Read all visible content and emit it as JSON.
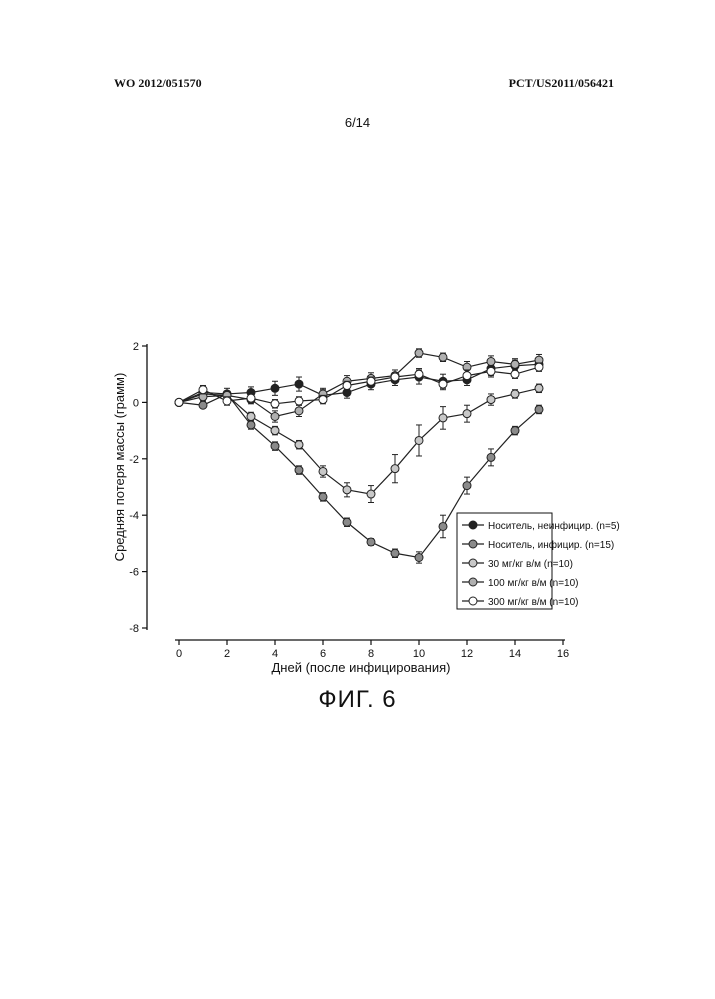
{
  "header": {
    "left": "WO 2012/051570",
    "right": "PCT/US2011/056421"
  },
  "page_number": "6/14",
  "figure_caption": "ФИГ. 6",
  "chart_data": {
    "type": "line",
    "title": "",
    "xlabel": "Дней (после инфицирования)",
    "ylabel": "Средняя потеря массы (грамм)",
    "xlim": [
      0,
      16
    ],
    "ylim": [
      -8,
      2
    ],
    "xticks": [
      0,
      2,
      4,
      6,
      8,
      10,
      12,
      14,
      16
    ],
    "yticks": [
      -8,
      -6,
      -4,
      -2,
      0,
      2
    ],
    "grid": false,
    "legend_position": "lower-right",
    "x": [
      0,
      1,
      2,
      3,
      4,
      5,
      6,
      7,
      8,
      9,
      10,
      11,
      12,
      13,
      14,
      15
    ],
    "series": [
      {
        "name": "Носитель, неинфицир. (n=5)",
        "color": "#222222",
        "values": [
          0,
          0.35,
          0.3,
          0.35,
          0.5,
          0.65,
          0.25,
          0.35,
          0.65,
          0.8,
          0.9,
          0.75,
          0.8,
          1.2,
          1.3,
          1.35
        ],
        "errors": [
          0,
          0.2,
          0.2,
          0.2,
          0.25,
          0.25,
          0.2,
          0.2,
          0.2,
          0.2,
          0.25,
          0.25,
          0.2,
          0.25,
          0.2,
          0.2
        ]
      },
      {
        "name": "Носитель, инфицир. (n=15)",
        "color": "#8a8a8a",
        "values": [
          0,
          -0.1,
          0.3,
          -0.8,
          -1.55,
          -2.4,
          -3.35,
          -4.25,
          -4.95,
          -5.35,
          -5.5,
          -4.4,
          -2.95,
          -1.95,
          -1.0,
          -0.25
        ],
        "errors": [
          0,
          0.1,
          0.1,
          0.15,
          0.15,
          0.15,
          0.15,
          0.15,
          0.12,
          0.15,
          0.2,
          0.4,
          0.3,
          0.3,
          0.15,
          0.15
        ]
      },
      {
        "name": "30 мг/кг в/м (n=10)",
        "color": "#c8c8c8",
        "values": [
          0,
          0.3,
          0.25,
          -0.5,
          -1.0,
          -1.5,
          -2.45,
          -3.1,
          -3.25,
          -2.35,
          -1.35,
          -0.55,
          -0.4,
          0.1,
          0.3,
          0.5
        ],
        "errors": [
          0,
          0.15,
          0.15,
          0.15,
          0.15,
          0.15,
          0.2,
          0.25,
          0.3,
          0.5,
          0.55,
          0.4,
          0.3,
          0.2,
          0.15,
          0.15
        ]
      },
      {
        "name": "100 мг/кг в/м (n=10)",
        "color": "#b0b0b0",
        "values": [
          0,
          0.2,
          0.25,
          0.1,
          -0.5,
          -0.3,
          0.3,
          0.75,
          0.85,
          0.95,
          1.75,
          1.6,
          1.25,
          1.45,
          1.35,
          1.5
        ],
        "errors": [
          0,
          0.15,
          0.15,
          0.15,
          0.2,
          0.2,
          0.2,
          0.2,
          0.2,
          0.2,
          0.15,
          0.15,
          0.2,
          0.2,
          0.2,
          0.2
        ]
      },
      {
        "name": "300 мг/кг в/м (n=10)",
        "color": "#ffffff",
        "values": [
          0,
          0.45,
          0.05,
          0.15,
          -0.05,
          0.05,
          0.1,
          0.6,
          0.75,
          0.9,
          1.0,
          0.65,
          0.95,
          1.1,
          1.0,
          1.25
        ],
        "errors": [
          0,
          0.15,
          0.15,
          0.15,
          0.15,
          0.15,
          0.15,
          0.15,
          0.15,
          0.15,
          0.2,
          0.2,
          0.2,
          0.2,
          0.15,
          0.15
        ]
      }
    ]
  }
}
